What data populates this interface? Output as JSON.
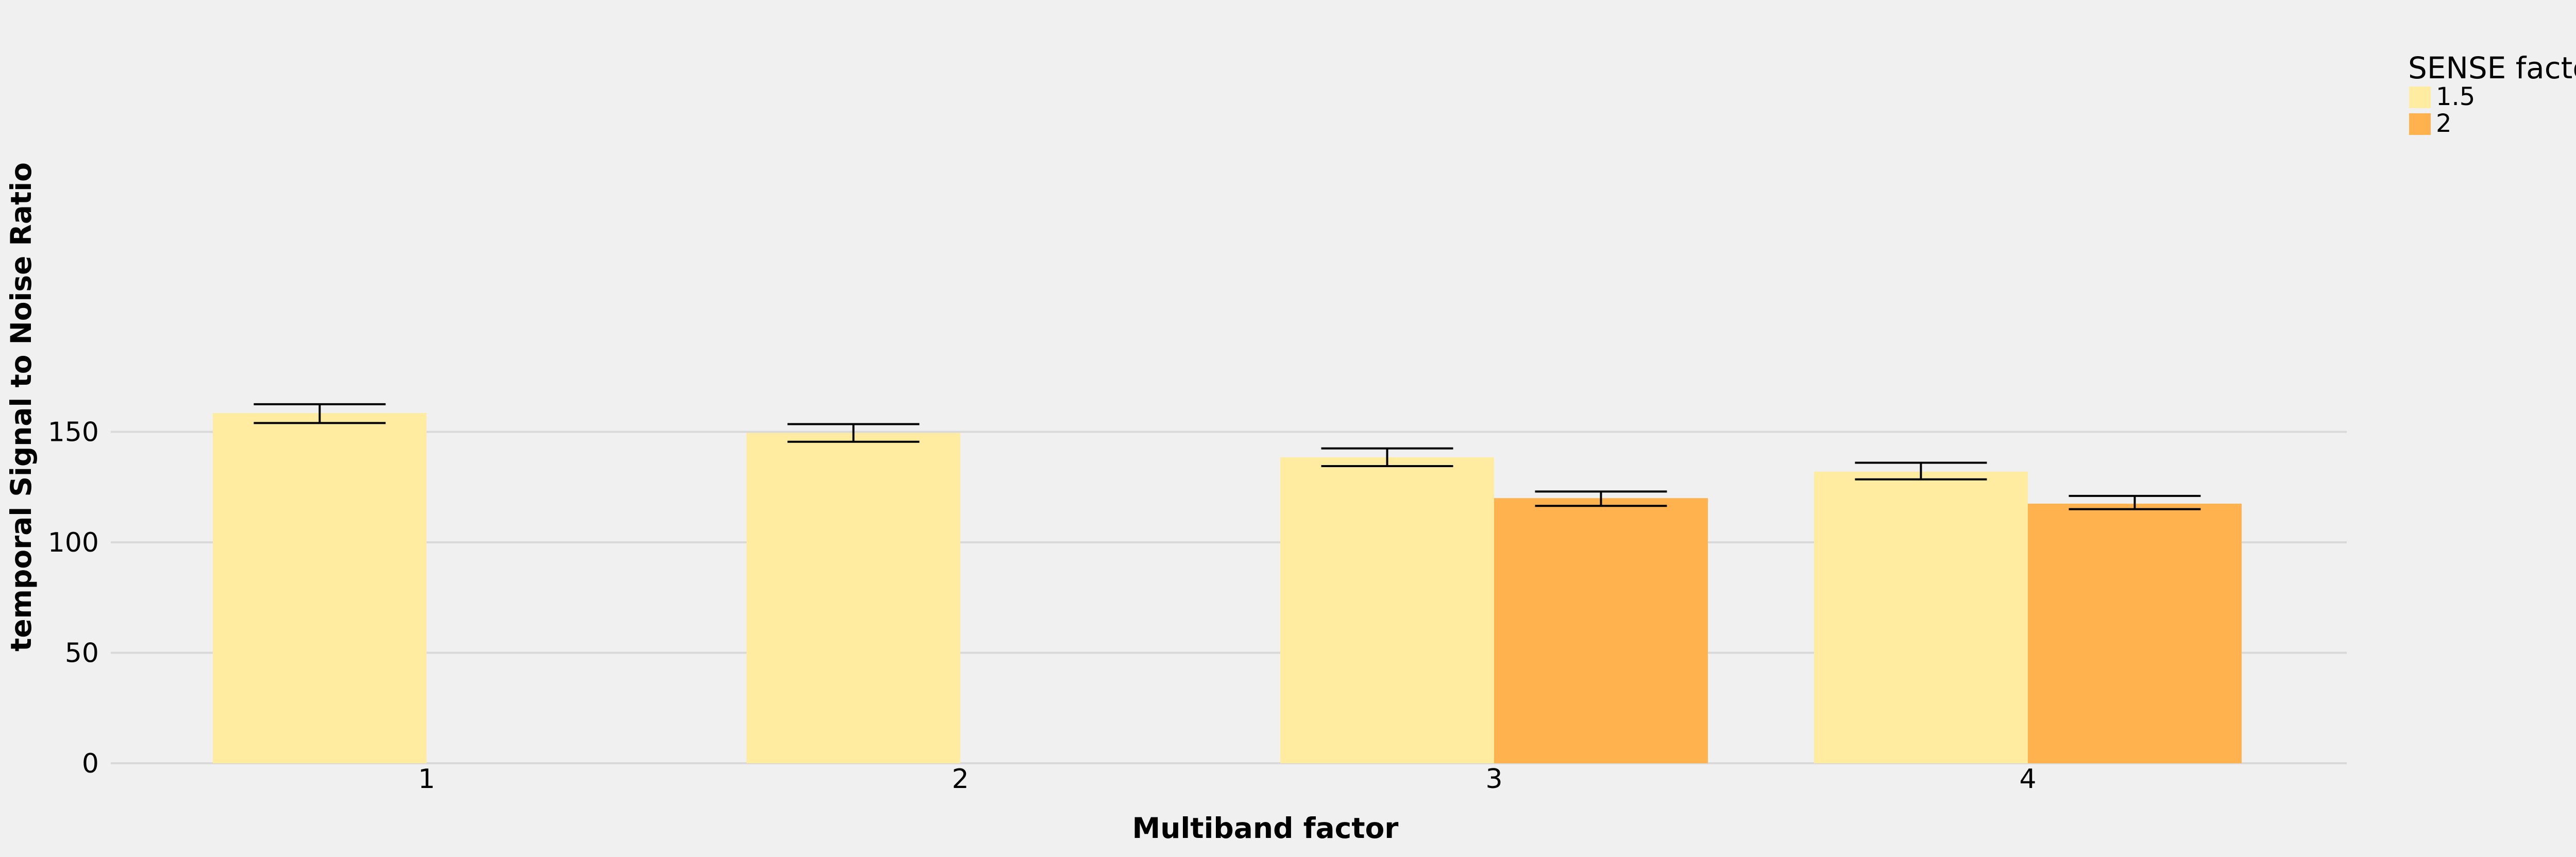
{
  "chart_data": {
    "type": "bar",
    "categories": [
      "1",
      "2",
      "3",
      "4"
    ],
    "xlabel": "Multiband factor",
    "ylabel": "temporal Signal to Noise Ratio",
    "ylim": [
      0,
      170
    ],
    "yticks": [
      0,
      50,
      100,
      150
    ],
    "grid": "horizontal",
    "legend": {
      "title": "SENSE factor",
      "placement": "top-right"
    },
    "series": [
      {
        "name": "1.5",
        "color": "#ffeca0",
        "values": [
          158.5,
          149.5,
          138.5,
          132
        ],
        "error_low": [
          154,
          145.5,
          134.5,
          128.5
        ],
        "error_high": [
          162.5,
          153.5,
          142.5,
          136
        ]
      },
      {
        "name": "2",
        "color": "#ffb24e",
        "values": [
          null,
          null,
          120,
          117.5
        ],
        "error_low": [
          null,
          null,
          116.5,
          115
        ],
        "error_high": [
          null,
          null,
          123,
          121
        ]
      }
    ]
  }
}
